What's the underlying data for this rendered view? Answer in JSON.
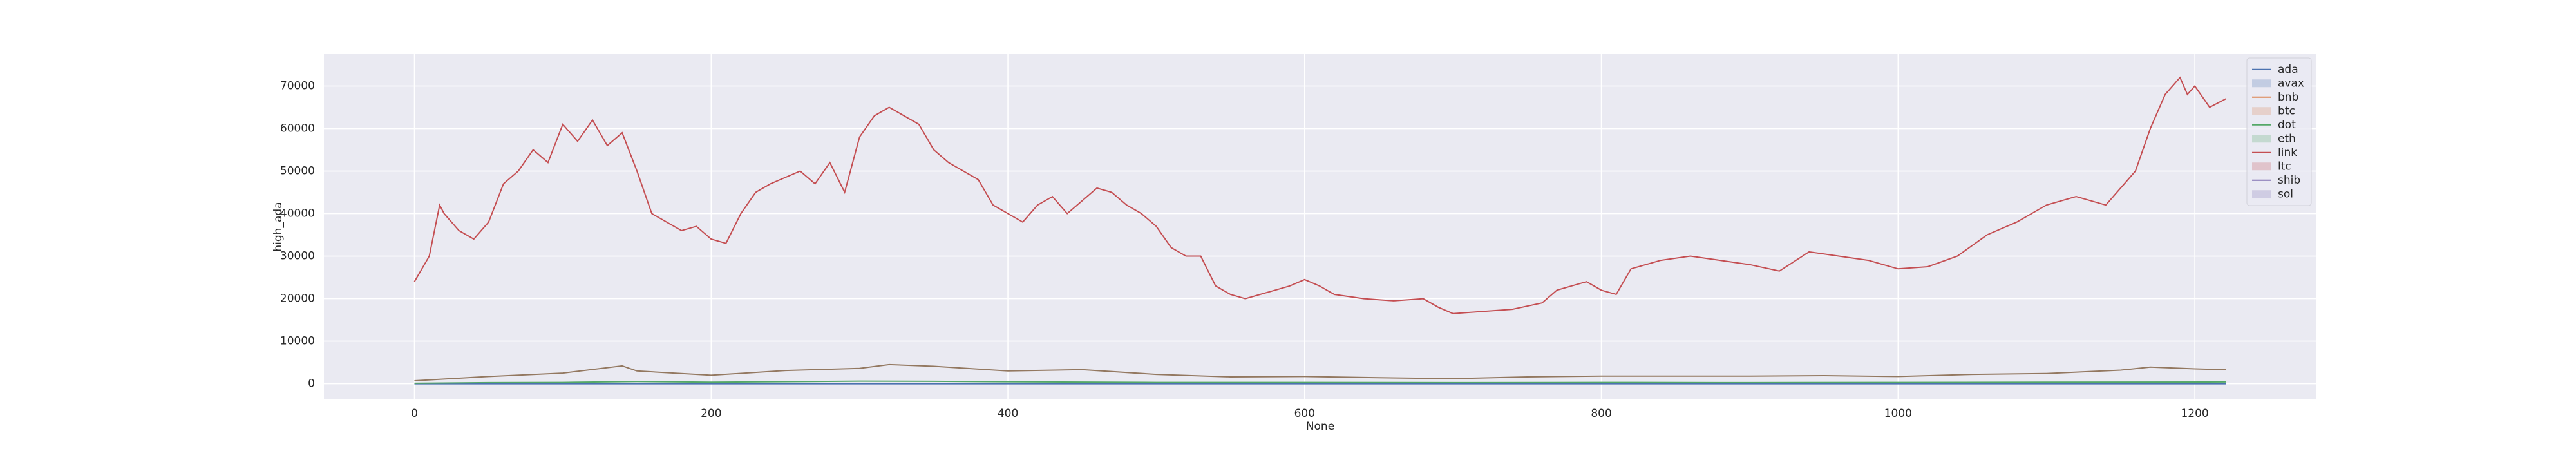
{
  "chart_data": {
    "type": "line",
    "xlabel": "None",
    "ylabel": "high_ada",
    "xlim": [
      -61,
      1282
    ],
    "ylim": [
      -3700,
      77500
    ],
    "xticks": [
      0,
      200,
      400,
      600,
      800,
      1000,
      1200
    ],
    "yticks": [
      0,
      10000,
      20000,
      30000,
      40000,
      50000,
      60000,
      70000
    ],
    "grid": true,
    "legend_position": "upper right",
    "legend": [
      {
        "label": "ada",
        "marker": "line",
        "color": "#4c72b0"
      },
      {
        "label": "avax",
        "marker": "patch",
        "color": "#4c72b0"
      },
      {
        "label": "bnb",
        "marker": "line",
        "color": "#dd8452"
      },
      {
        "label": "btc",
        "marker": "patch",
        "color": "#dd8452"
      },
      {
        "label": "dot",
        "marker": "line",
        "color": "#55a868"
      },
      {
        "label": "eth",
        "marker": "patch",
        "color": "#55a868"
      },
      {
        "label": "link",
        "marker": "line",
        "color": "#c44e52"
      },
      {
        "label": "ltc",
        "marker": "patch",
        "color": "#c44e52"
      },
      {
        "label": "shib",
        "marker": "line",
        "color": "#8172b3"
      },
      {
        "label": "sol",
        "marker": "patch",
        "color": "#8172b3"
      }
    ],
    "series": [
      {
        "color": "#4c72b0",
        "x": [
          0,
          100,
          200,
          300,
          400,
          500,
          600,
          700,
          800,
          900,
          1000,
          1100,
          1221
        ],
        "values": [
          0.3,
          1.2,
          1.5,
          2.5,
          1.8,
          1.2,
          0.5,
          0.4,
          0.5,
          0.4,
          0.35,
          0.4,
          0.45
        ]
      },
      {
        "color": "#55a868",
        "x": [
          0,
          50,
          100,
          150,
          200,
          300,
          350,
          400,
          500,
          600,
          700,
          800,
          900,
          1000,
          1100,
          1221
        ],
        "values": [
          100,
          250,
          300,
          500,
          350,
          600,
          550,
          450,
          300,
          300,
          250,
          300,
          250,
          300,
          350,
          400
        ]
      },
      {
        "color": "#937860",
        "x": [
          0,
          50,
          100,
          140,
          150,
          200,
          250,
          300,
          320,
          350,
          400,
          450,
          500,
          550,
          600,
          650,
          700,
          750,
          800,
          850,
          900,
          950,
          1000,
          1050,
          1100,
          1150,
          1170,
          1200,
          1221
        ],
        "values": [
          700,
          1700,
          2500,
          4200,
          3000,
          2000,
          3100,
          3600,
          4500,
          4100,
          3000,
          3300,
          2200,
          1600,
          1700,
          1400,
          1200,
          1600,
          1800,
          1800,
          1800,
          1900,
          1700,
          2200,
          2400,
          3200,
          3900,
          3500,
          3300
        ]
      },
      {
        "color": "#c44e52",
        "x": [
          0,
          10,
          17,
          20,
          30,
          40,
          50,
          60,
          70,
          80,
          90,
          100,
          110,
          120,
          130,
          140,
          150,
          160,
          170,
          180,
          190,
          200,
          210,
          220,
          230,
          240,
          260,
          270,
          280,
          290,
          300,
          310,
          320,
          330,
          340,
          350,
          360,
          370,
          380,
          390,
          400,
          410,
          420,
          430,
          440,
          450,
          460,
          470,
          480,
          490,
          500,
          510,
          520,
          530,
          540,
          550,
          560,
          570,
          580,
          590,
          600,
          610,
          620,
          640,
          660,
          680,
          690,
          700,
          720,
          740,
          760,
          770,
          790,
          800,
          810,
          820,
          840,
          860,
          880,
          900,
          920,
          940,
          960,
          980,
          1000,
          1020,
          1040,
          1060,
          1080,
          1100,
          1120,
          1140,
          1160,
          1170,
          1180,
          1190,
          1195,
          1200,
          1210,
          1221
        ],
        "values": [
          24000,
          30000,
          42000,
          40000,
          36000,
          34000,
          38000,
          47000,
          50000,
          55000,
          52000,
          61000,
          57000,
          62000,
          56000,
          59000,
          50000,
          40000,
          38000,
          36000,
          37000,
          34000,
          33000,
          40000,
          45000,
          47000,
          50000,
          47000,
          52000,
          45000,
          58000,
          63000,
          65000,
          63000,
          61000,
          55000,
          52000,
          50000,
          48000,
          42000,
          40000,
          38000,
          42000,
          44000,
          40000,
          43000,
          46000,
          45000,
          42000,
          40000,
          37000,
          32000,
          30000,
          30000,
          23000,
          21000,
          20000,
          21000,
          22000,
          23000,
          24500,
          23000,
          21000,
          20000,
          19500,
          20000,
          18000,
          16500,
          17000,
          17500,
          19000,
          22000,
          24000,
          22000,
          21000,
          27000,
          29000,
          30000,
          29000,
          28000,
          26500,
          31000,
          30000,
          29000,
          27000,
          27500,
          30000,
          35000,
          38000,
          42000,
          44000,
          42000,
          50000,
          60000,
          68000,
          72000,
          68000,
          70000,
          65000,
          67000
        ]
      }
    ]
  }
}
